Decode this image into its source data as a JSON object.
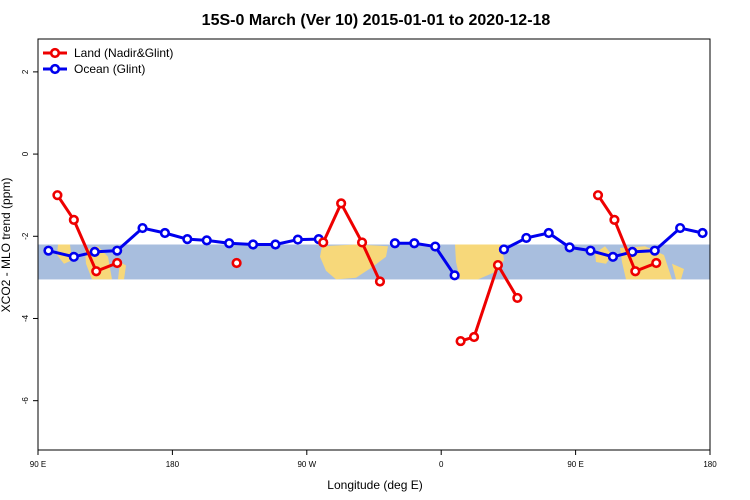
{
  "chart_data": {
    "type": "line",
    "title": "15S-0 March (Ver 10)   2015-01-01 to 2020-12-18",
    "xlabel": "Longitude (deg E)",
    "ylabel": "XCO2 - MLO trend (ppm)",
    "xlim": [
      90,
      540
    ],
    "ylim": [
      -7.2,
      2.8
    ],
    "x_ticks": [
      {
        "value": 90,
        "label": "90 E"
      },
      {
        "value": 180,
        "label": "180"
      },
      {
        "value": 270,
        "label": "90 W"
      },
      {
        "value": 360,
        "label": "0"
      },
      {
        "value": 450,
        "label": "90 E"
      },
      {
        "value": 540,
        "label": "180"
      }
    ],
    "y_ticks": [
      {
        "value": 2,
        "label": "2"
      },
      {
        "value": 0,
        "label": "0"
      },
      {
        "value": -2,
        "label": "-2"
      },
      {
        "value": -4,
        "label": "-4"
      },
      {
        "value": -6,
        "label": "-6"
      }
    ],
    "map_band": {
      "lat_range": [
        -15,
        0
      ],
      "y_range": [
        -3.05,
        -2.2
      ],
      "ocean_color": "#a8bede",
      "land_color": "#f7d87a"
    },
    "legend_position": "top-left",
    "series": [
      {
        "name": "Land (Nadir&Glint)",
        "color": "#ee0000",
        "segments": [
          [
            [
              103,
              -1.0
            ],
            [
              114,
              -1.6
            ],
            [
              129,
              -2.85
            ],
            [
              143,
              -2.65
            ]
          ],
          [
            [
              223,
              -2.65
            ]
          ],
          [
            [
              281,
              -2.15
            ],
            [
              293,
              -1.2
            ],
            [
              307,
              -2.15
            ],
            [
              319,
              -3.1
            ]
          ],
          [
            [
              373,
              -4.55
            ],
            [
              382,
              -4.45
            ],
            [
              398,
              -2.7
            ],
            [
              411,
              -3.5
            ]
          ],
          [
            [
              465,
              -1.0
            ],
            [
              476,
              -1.6
            ],
            [
              490,
              -2.85
            ],
            [
              504,
              -2.65
            ]
          ]
        ]
      },
      {
        "name": "Ocean (Glint)",
        "color": "#0000ee",
        "segments": [
          [
            [
              97,
              -2.35
            ],
            [
              114,
              -2.5
            ],
            [
              128,
              -2.38
            ],
            [
              143,
              -2.35
            ],
            [
              160,
              -1.8
            ],
            [
              175,
              -1.92
            ],
            [
              190,
              -2.07
            ],
            [
              203,
              -2.1
            ],
            [
              218,
              -2.17
            ],
            [
              234,
              -2.2
            ],
            [
              249,
              -2.2
            ],
            [
              264,
              -2.08
            ],
            [
              278,
              -2.07
            ]
          ],
          [
            [
              329,
              -2.17
            ],
            [
              342,
              -2.17
            ],
            [
              356,
              -2.25
            ],
            [
              369,
              -2.95
            ]
          ],
          [
            [
              402,
              -2.32
            ],
            [
              417,
              -2.04
            ],
            [
              432,
              -1.92
            ],
            [
              446,
              -2.27
            ],
            [
              460,
              -2.35
            ],
            [
              475,
              -2.5
            ],
            [
              488,
              -2.38
            ],
            [
              503,
              -2.35
            ],
            [
              520,
              -1.8
            ],
            [
              535,
              -1.92
            ]
          ]
        ]
      }
    ]
  }
}
